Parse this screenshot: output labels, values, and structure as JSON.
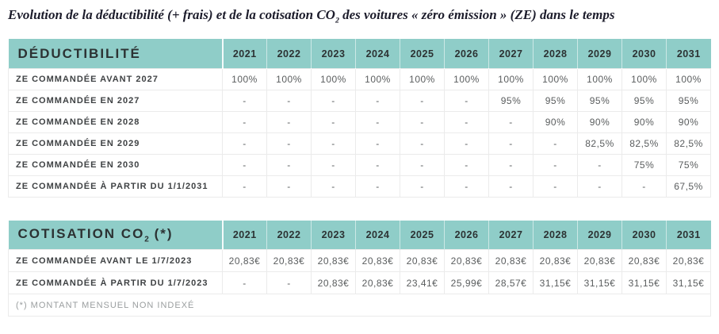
{
  "title": {
    "pre": "Evolution de la déductibilité (+ frais) et de la cotisation CO",
    "sub": "2",
    "post": " des voitures « zéro émission » (ZE) dans le temps"
  },
  "colors": {
    "header_background": "#8FCDC8",
    "header_text": "#2c3233",
    "row_label_text": "#3f4244",
    "value_text": "#5a5d5e",
    "cell_border": "#ebebeb",
    "title_text": "#1c1c2b",
    "footnote_text": "#9a9e9f"
  },
  "years": [
    "2021",
    "2022",
    "2023",
    "2024",
    "2025",
    "2026",
    "2027",
    "2028",
    "2029",
    "2030",
    "2031"
  ],
  "deductibility_table": {
    "header": "DÉDUCTIBILITÉ",
    "rows": [
      {
        "label": "ZE COMMANDÉE AVANT 2027",
        "values": [
          "100%",
          "100%",
          "100%",
          "100%",
          "100%",
          "100%",
          "100%",
          "100%",
          "100%",
          "100%",
          "100%"
        ]
      },
      {
        "label": "ZE COMMANDÉE EN 2027",
        "values": [
          "-",
          "-",
          "-",
          "-",
          "-",
          "-",
          "95%",
          "95%",
          "95%",
          "95%",
          "95%"
        ]
      },
      {
        "label": "ZE COMMANDÉE EN 2028",
        "values": [
          "-",
          "-",
          "-",
          "-",
          "-",
          "-",
          "-",
          "90%",
          "90%",
          "90%",
          "90%"
        ]
      },
      {
        "label": "ZE COMMANDÉE EN 2029",
        "values": [
          "-",
          "-",
          "-",
          "-",
          "-",
          "-",
          "-",
          "-",
          "82,5%",
          "82,5%",
          "82,5%"
        ]
      },
      {
        "label": "ZE COMMANDÉE EN 2030",
        "values": [
          "-",
          "-",
          "-",
          "-",
          "-",
          "-",
          "-",
          "-",
          "-",
          "75%",
          "75%"
        ]
      },
      {
        "label": "ZE COMMANDÉE À PARTIR DU 1/1/2031",
        "values": [
          "-",
          "-",
          "-",
          "-",
          "-",
          "-",
          "-",
          "-",
          "-",
          "-",
          "67,5%"
        ]
      }
    ]
  },
  "co2_table": {
    "header": {
      "pre": "COTISATION CO",
      "sub": "2",
      "post": " (*)"
    },
    "rows": [
      {
        "label": "ZE COMMANDÉE AVANT LE 1/7/2023",
        "values": [
          "20,83€",
          "20,83€",
          "20,83€",
          "20,83€",
          "20,83€",
          "20,83€",
          "20,83€",
          "20,83€",
          "20,83€",
          "20,83€",
          "20,83€"
        ]
      },
      {
        "label": "ZE COMMANDÉE À PARTIR DU 1/7/2023",
        "values": [
          "-",
          "-",
          "20,83€",
          "20,83€",
          "23,41€",
          "25,99€",
          "28,57€",
          "31,15€",
          "31,15€",
          "31,15€",
          "31,15€"
        ]
      }
    ],
    "footnote": "(*) MONTANT MENSUEL NON INDEXÉ"
  }
}
